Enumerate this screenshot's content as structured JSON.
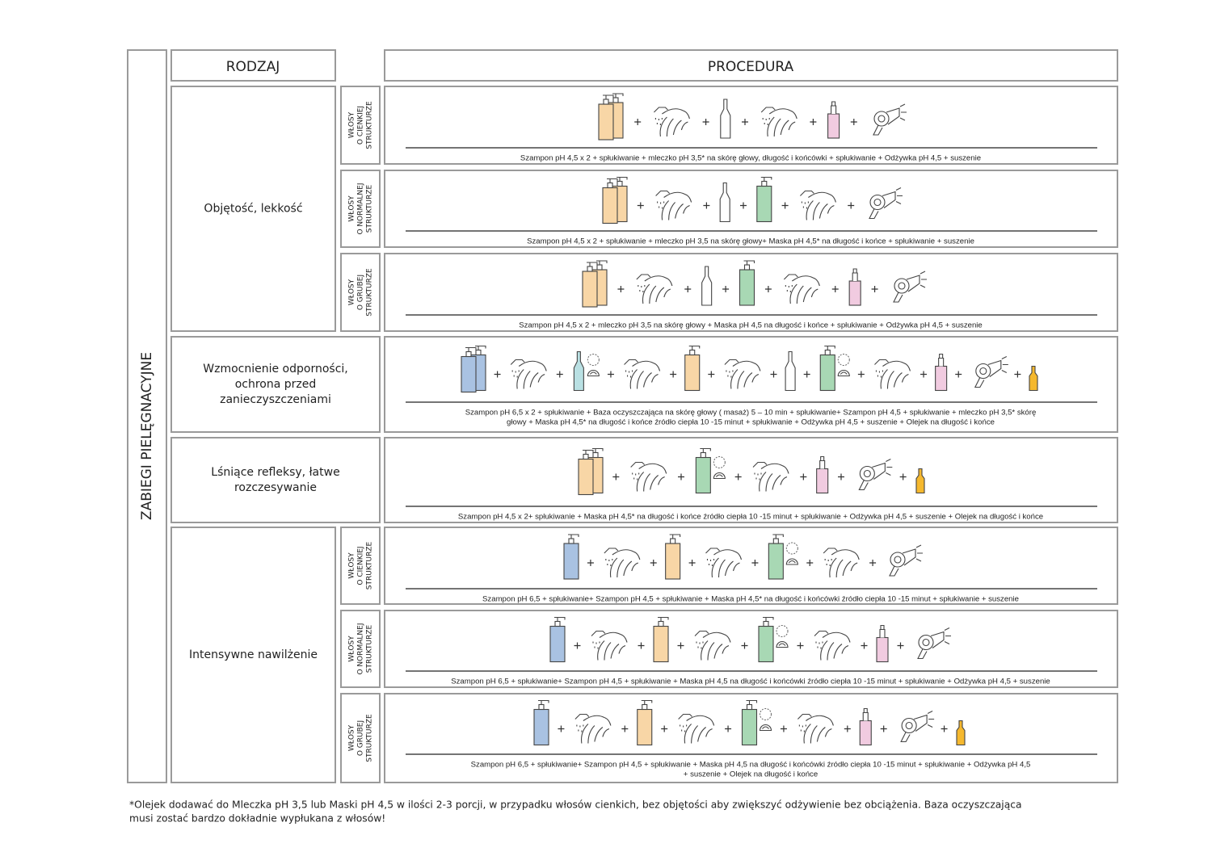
{
  "header": {
    "side_title": "ZABIEGI PIELĘGNACYJNE",
    "col_type": "RODZAJ",
    "col_procedure": "PROCEDURA"
  },
  "groups": [
    {
      "label": [
        "Objętość, lekkość"
      ],
      "rows": [
        {
          "hair_type": [
            "WŁOSY",
            "O CIENKIEJ",
            "STRUKTURZE"
          ],
          "procedure": [
            "Szampon pH 4,5  x 2 + spłukiwanie +  mleczko pH 3,5* na skórę głowy, długość i końcówki + spłukiwanie + Odżywka pH 4,5 + suszenie"
          ]
        },
        {
          "hair_type": [
            "WŁOSY",
            "O NORMALNEJ",
            "STRUKTURZE"
          ],
          "procedure": [
            "Szampon pH 4,5  x 2 +  spłukiwanie + mleczko pH 3,5 na skórę głowy+ Maska pH 4,5* na długość i końce + spłukiwanie + suszenie"
          ]
        },
        {
          "hair_type": [
            "WŁOSY",
            "O GRUBEJ",
            "STRUKTURZE"
          ],
          "procedure": [
            "Szampon pH 4,5  x 2 + mleczko pH 3,5 na skórę głowy + Maska pH 4,5 na długość i końce + spłukiwanie + Odżywka pH 4,5 + suszenie"
          ]
        }
      ]
    },
    {
      "label": [
        "Wzmocnienie odporności,",
        "ochrona przed",
        "zanieczyszczeniami"
      ],
      "rows": [
        {
          "procedure": [
            "Szampon pH 6,5 x 2 + spłukiwanie + Baza oczyszczająca na skórę głowy ( masaż) 5 – 10 min + spłukiwanie+ Szampon pH 4,5  + spłukiwanie + mleczko pH 3,5* skórę",
            "głowy + Maska pH 4,5* na długość i końce źródło ciepła 10 -15 minut + spłukiwanie + Odżywka pH 4,5 + suszenie + Olejek  na długość i końce"
          ]
        }
      ]
    },
    {
      "label": [
        "Lśniące refleksy, łatwe",
        "rozczesywanie"
      ],
      "rows": [
        {
          "procedure": [
            "Szampon pH 4,5 x 2+ spłukiwanie + Maska pH 4,5* na długość i końce źródło ciepła 10 -15 minut + spłukiwanie + Odżywka pH 4,5 + suszenie + Olejek  na długość i końce"
          ]
        }
      ]
    },
    {
      "label": [
        "Intensywne nawilżenie"
      ],
      "rows": [
        {
          "hair_type": [
            "WŁOSY",
            "O CIENKIEJ",
            "STRUKTURZE"
          ],
          "procedure": [
            "Szampon pH 6,5 + spłukiwanie+ Szampon pH 4,5  + spłukiwanie + Maska pH 4,5* na długość i końcówki źródło ciepła 10 -15 minut + spłukiwanie + suszenie"
          ]
        },
        {
          "hair_type": [
            "WŁOSY",
            "O NORMALNEJ",
            "STRUKTURZE"
          ],
          "procedure": [
            "Szampon pH 6,5  + spłukiwanie+  Szampon pH 4,5  + spłukiwanie + Maska pH 4,5 na długość i końcówki źródło ciepła 10 -15 minut + spłukiwanie + Odżywka pH 4,5 + suszenie"
          ]
        },
        {
          "hair_type": [
            "WŁOSY",
            "O GRUBEJ",
            "STRUKTURZE"
          ],
          "procedure": [
            "Szampon pH 6,5  + spłukiwanie+  Szampon pH 4,5  + spłukiwanie + Maska pH 4,5   na długość i końcówki źródło ciepła 10 -15 minut + spłukiwanie + Odżywka pH 4,5",
            "+ suszenie + Olejek  na długość i końce"
          ]
        }
      ]
    }
  ],
  "footnote": [
    "*Olejek dodawać do Mleczka pH 3,5  lub Maski pH 4,5 w ilości 2-3 porcji, w przypadku włosów cienkich, bez objętości aby zwiększyć odżywienie bez obciążenia. Baza oczyszczająca",
    "musi zostać bardzo dokładnie wypłukana z włosów!"
  ]
}
